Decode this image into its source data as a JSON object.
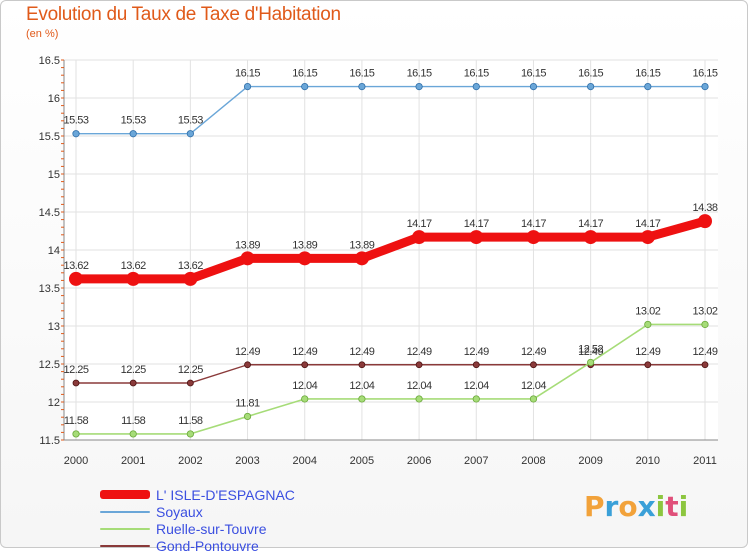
{
  "header": {
    "title": "Evolution du Taux de Taxe d'Habitation",
    "subtitle": "(en %)"
  },
  "logo": {
    "letters": [
      "P",
      "r",
      "o",
      "x",
      "i",
      "t",
      "i"
    ],
    "colors": [
      "#f2a23a",
      "#3aa0d8",
      "#f2a23a",
      "#3aa0d8",
      "#8cc63f",
      "#e0507a",
      "#8cc63f"
    ]
  },
  "chart_data": {
    "type": "line",
    "categories": [
      "2000",
      "2001",
      "2002",
      "2003",
      "2004",
      "2005",
      "2006",
      "2007",
      "2008",
      "2009",
      "2010",
      "2011"
    ],
    "ylim": [
      11.5,
      16.5
    ],
    "yticks": [
      "11.5",
      "12",
      "12.5",
      "13",
      "13.5",
      "14",
      "14.5",
      "15",
      "15.5",
      "16",
      "16.5"
    ],
    "grid": true,
    "legend_placement": "bottom-left",
    "series": [
      {
        "name": "L' ISLE-D'ESPAGNAC",
        "color": "#ee1111",
        "values": [
          13.62,
          13.62,
          13.62,
          13.89,
          13.89,
          13.89,
          14.17,
          14.17,
          14.17,
          14.17,
          14.17,
          14.38
        ],
        "labels": [
          "13.62",
          "13.62",
          "13.62",
          "13.89",
          "13.89",
          "13.89",
          "14.17",
          "14.17",
          "14.17",
          "14.17",
          "14.17",
          "14.38"
        ]
      },
      {
        "name": "Soyaux",
        "color": "#6aa6d8",
        "values": [
          15.53,
          15.53,
          15.53,
          16.15,
          16.15,
          16.15,
          16.15,
          16.15,
          16.15,
          16.15,
          16.15,
          16.15
        ],
        "labels": [
          "15.53",
          "15.53",
          "15.53",
          "16.15",
          "16.15",
          "16.15",
          "16.15",
          "16.15",
          "16.15",
          "16.15",
          "16.15",
          "16.15"
        ]
      },
      {
        "name": "Ruelle-sur-Touvre",
        "color": "#a6dc78",
        "values": [
          11.58,
          11.58,
          11.58,
          11.81,
          12.04,
          12.04,
          12.04,
          12.04,
          12.04,
          12.52,
          13.02,
          13.02
        ],
        "labels": [
          "11.58",
          "11.58",
          "11.58",
          "11.81",
          "12.04",
          "12.04",
          "12.04",
          "12.04",
          "12.04",
          "12.52",
          "13.02",
          "13.02"
        ]
      },
      {
        "name": "Gond-Pontouvre",
        "color": "#8a3a3a",
        "values": [
          12.25,
          12.25,
          12.25,
          12.49,
          12.49,
          12.49,
          12.49,
          12.49,
          12.49,
          12.49,
          12.49,
          12.49
        ],
        "labels": [
          "12.25",
          "12.25",
          "12.25",
          "12.49",
          "12.49",
          "12.49",
          "12.49",
          "12.49",
          "12.49",
          "12.49",
          "12.49",
          "12.49"
        ]
      }
    ]
  }
}
